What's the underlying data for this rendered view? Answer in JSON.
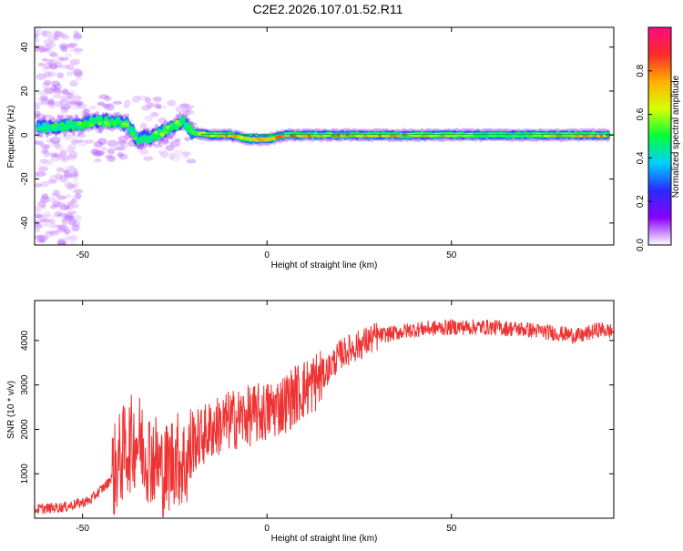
{
  "title": "C2E2.2026.107.01.52.R11",
  "colors": {
    "plot_border": "#000000",
    "snr_line": "#ee3333",
    "colorbar": [
      "#ffffff",
      "#8a00ff",
      "#2a2aff",
      "#00d0ff",
      "#00ff3a",
      "#d9ff00",
      "#ffb000",
      "#ff2a2a",
      "#ff0a80"
    ]
  },
  "chart_data": [
    {
      "type": "heatmap",
      "title": "",
      "xlabel": "Height of straight line (km)",
      "ylabel": "Frequency (Hz)",
      "xlim": [
        -63,
        94
      ],
      "ylim": [
        -50,
        49
      ],
      "x_ticks": [
        -50,
        0,
        50
      ],
      "x_tick_labels": [
        "-50",
        "0",
        "50"
      ],
      "y_ticks": [
        -40,
        -20,
        0,
        20,
        40
      ],
      "y_tick_labels": [
        "-40",
        "-20",
        "0",
        "20",
        "40"
      ],
      "colorbar": {
        "label": "Normalized spectral amplitude",
        "range": [
          0,
          1
        ],
        "ticks": [
          0,
          0.2,
          0.4,
          0.6,
          0.8
        ],
        "tick_labels": [
          "0.0",
          "0.2",
          "0.4",
          "0.6",
          "0.8"
        ]
      },
      "ridge": {
        "x": [
          -62,
          -58,
          -54,
          -50,
          -46,
          -42,
          -38,
          -35,
          -32,
          -29,
          -26,
          -23,
          -20,
          -15,
          -10,
          -5,
          0,
          5,
          10,
          20,
          30,
          40,
          50,
          60,
          70,
          80,
          90,
          93
        ],
        "freq": [
          3,
          4,
          4,
          5,
          6,
          6,
          5,
          -2,
          -1,
          1,
          3,
          6,
          1,
          0,
          0,
          -2,
          -2,
          0,
          0,
          0,
          0,
          0,
          0,
          0,
          0,
          0,
          0,
          0
        ],
        "amplitude": [
          0.45,
          0.5,
          0.5,
          0.55,
          0.55,
          0.6,
          0.55,
          0.5,
          0.5,
          0.6,
          0.6,
          0.55,
          0.6,
          0.8,
          0.8,
          0.75,
          0.8,
          0.85,
          0.85,
          0.85,
          0.8,
          0.8,
          0.75,
          0.55,
          0.55,
          0.8,
          0.85,
          0.85
        ]
      }
    },
    {
      "type": "line",
      "title": "",
      "xlabel": "Height of straight line (km)",
      "ylabel": "SNR (10 * v/v)",
      "xlim": [
        -63,
        94
      ],
      "ylim": [
        0,
        4900
      ],
      "x_ticks": [
        -50,
        0,
        50
      ],
      "x_tick_labels": [
        "-50",
        "0",
        "50"
      ],
      "y_ticks": [
        1000,
        2000,
        3000,
        4000
      ],
      "y_tick_labels": [
        "1000",
        "2000",
        "3000",
        "4000"
      ],
      "series": [
        {
          "x": [
            -63,
            -55,
            -48,
            -43,
            -40,
            -38,
            -35,
            -33,
            -30,
            -28,
            -25,
            -22,
            -20,
            -15,
            -10,
            -5,
            0,
            5,
            8,
            12,
            15,
            20,
            25,
            30,
            40,
            50,
            60,
            70,
            80,
            85,
            90,
            94
          ],
          "values": [
            200,
            250,
            400,
            800,
            1300,
            1600,
            1800,
            1500,
            1300,
            1000,
            1400,
            1200,
            1700,
            2000,
            2200,
            2300,
            2400,
            2600,
            2800,
            3000,
            3200,
            3700,
            3900,
            4100,
            4250,
            4300,
            4300,
            4250,
            4150,
            4100,
            4250,
            4200
          ]
        }
      ]
    }
  ]
}
